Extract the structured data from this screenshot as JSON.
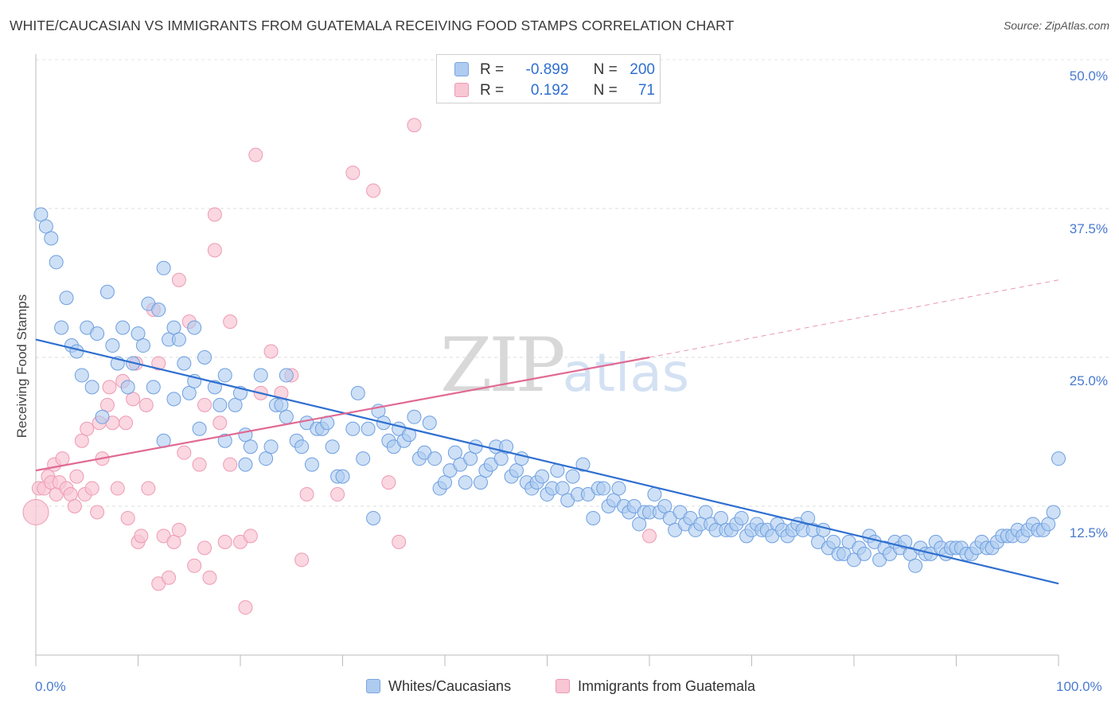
{
  "header": {
    "title": "WHITE/CAUCASIAN VS IMMIGRANTS FROM GUATEMALA RECEIVING FOOD STAMPS CORRELATION CHART",
    "source": "Source: ZipAtlas.com"
  },
  "watermark": {
    "zip": "ZIP",
    "atlas": "atlas"
  },
  "legend_top": {
    "row1": {
      "r_label": "R =",
      "r_value": "-0.899",
      "n_label": "N =",
      "n_value": "200"
    },
    "row2": {
      "r_label": "R =",
      "r_value": "0.192",
      "n_label": "N =",
      "n_value": "71"
    }
  },
  "colors": {
    "blue_fill": "#aecbf0",
    "blue_stroke": "#6e9fe0",
    "blue_line": "#2f6fd0",
    "pink_fill": "#f8c6d4",
    "pink_stroke": "#ee9ab4",
    "pink_line": "#e06a94",
    "tick_text": "#4a7bd0"
  },
  "chart_data": {
    "type": "scatter",
    "title": "WHITE/CAUCASIAN VS IMMIGRANTS FROM GUATEMALA RECEIVING FOOD STAMPS CORRELATION CHART",
    "xlabel": "",
    "ylabel": "Receiving Food Stamps",
    "xlim": [
      0,
      100
    ],
    "ylim": [
      0,
      50
    ],
    "x_tick_labels": [
      "0.0%",
      "100.0%"
    ],
    "y_ticks": [
      12.5,
      25.0,
      37.5,
      50.0
    ],
    "y_tick_labels": [
      "12.5%",
      "25.0%",
      "37.5%",
      "50.0%"
    ],
    "grid": true,
    "legend_position": "bottom",
    "series": [
      {
        "name": "Whites/Caucasians",
        "color": "#aecbf0",
        "r": -0.899,
        "n": 200,
        "trend": {
          "x": [
            0,
            100
          ],
          "y": [
            26.5,
            6.0
          ]
        },
        "points": [
          [
            0.5,
            37.0
          ],
          [
            1.0,
            36.0
          ],
          [
            1.5,
            35.0
          ],
          [
            2.0,
            33.0
          ],
          [
            2.5,
            27.5
          ],
          [
            3.0,
            30.0
          ],
          [
            3.5,
            26.0
          ],
          [
            4.0,
            25.5
          ],
          [
            4.5,
            23.5
          ],
          [
            5.0,
            27.5
          ],
          [
            5.5,
            22.5
          ],
          [
            6.0,
            27.0
          ],
          [
            6.5,
            20.0
          ],
          [
            7.0,
            30.5
          ],
          [
            7.5,
            26.0
          ],
          [
            8.0,
            24.5
          ],
          [
            8.5,
            27.5
          ],
          [
            9.0,
            22.5
          ],
          [
            9.5,
            24.5
          ],
          [
            10.0,
            27.0
          ],
          [
            10.5,
            26.0
          ],
          [
            11.0,
            29.5
          ],
          [
            11.5,
            22.5
          ],
          [
            12.0,
            29.0
          ],
          [
            12.5,
            18.0
          ],
          [
            12.5,
            32.5
          ],
          [
            13.0,
            26.5
          ],
          [
            13.5,
            27.5
          ],
          [
            13.5,
            21.5
          ],
          [
            14.0,
            26.5
          ],
          [
            14.5,
            24.5
          ],
          [
            15.0,
            22.0
          ],
          [
            15.5,
            27.5
          ],
          [
            15.5,
            23.0
          ],
          [
            16.0,
            19.0
          ],
          [
            16.5,
            25.0
          ],
          [
            17.5,
            22.5
          ],
          [
            18.0,
            21.0
          ],
          [
            18.5,
            18.0
          ],
          [
            18.5,
            23.5
          ],
          [
            19.5,
            21.0
          ],
          [
            20.0,
            22.0
          ],
          [
            20.5,
            18.5
          ],
          [
            20.5,
            16.0
          ],
          [
            21.0,
            17.5
          ],
          [
            22.0,
            23.5
          ],
          [
            22.5,
            16.5
          ],
          [
            23.0,
            17.5
          ],
          [
            23.5,
            21.0
          ],
          [
            24.0,
            21.0
          ],
          [
            24.5,
            23.5
          ],
          [
            24.5,
            20.0
          ],
          [
            25.5,
            18.0
          ],
          [
            26.0,
            17.5
          ],
          [
            26.5,
            19.5
          ],
          [
            27.0,
            16.0
          ],
          [
            27.5,
            19.0
          ],
          [
            28.0,
            19.0
          ],
          [
            28.5,
            19.5
          ],
          [
            29.0,
            17.5
          ],
          [
            29.5,
            15.0
          ],
          [
            30.0,
            15.0
          ],
          [
            31.0,
            19.0
          ],
          [
            31.5,
            22.0
          ],
          [
            32.0,
            16.5
          ],
          [
            32.5,
            19.0
          ],
          [
            33.0,
            11.5
          ],
          [
            33.5,
            20.5
          ],
          [
            34.0,
            19.5
          ],
          [
            34.5,
            18.0
          ],
          [
            35.0,
            17.5
          ],
          [
            35.5,
            19.0
          ],
          [
            36.0,
            18.0
          ],
          [
            36.5,
            18.5
          ],
          [
            37.0,
            20.0
          ],
          [
            37.5,
            16.5
          ],
          [
            38.0,
            17.0
          ],
          [
            38.5,
            19.5
          ],
          [
            39.0,
            16.5
          ],
          [
            39.5,
            14.0
          ],
          [
            40.0,
            14.5
          ],
          [
            40.5,
            15.5
          ],
          [
            41.0,
            17.0
          ],
          [
            41.5,
            16.0
          ],
          [
            42.0,
            14.5
          ],
          [
            42.5,
            16.5
          ],
          [
            43.0,
            17.5
          ],
          [
            43.5,
            14.5
          ],
          [
            44.0,
            15.5
          ],
          [
            44.5,
            16.0
          ],
          [
            45.0,
            17.5
          ],
          [
            45.5,
            16.5
          ],
          [
            46.0,
            17.5
          ],
          [
            46.5,
            15.0
          ],
          [
            47.0,
            15.5
          ],
          [
            47.5,
            16.5
          ],
          [
            48.0,
            14.5
          ],
          [
            48.5,
            14.0
          ],
          [
            49.0,
            14.5
          ],
          [
            49.5,
            15.0
          ],
          [
            50.0,
            13.5
          ],
          [
            50.5,
            14.0
          ],
          [
            51.0,
            15.5
          ],
          [
            51.5,
            14.0
          ],
          [
            52.0,
            13.0
          ],
          [
            52.5,
            15.0
          ],
          [
            53.0,
            13.5
          ],
          [
            53.5,
            16.0
          ],
          [
            54.0,
            13.5
          ],
          [
            54.5,
            11.5
          ],
          [
            55.0,
            14.0
          ],
          [
            55.5,
            14.0
          ],
          [
            56.0,
            12.5
          ],
          [
            56.5,
            13.0
          ],
          [
            57.0,
            14.0
          ],
          [
            57.5,
            12.5
          ],
          [
            58.0,
            12.0
          ],
          [
            58.5,
            12.5
          ],
          [
            59.0,
            11.0
          ],
          [
            59.5,
            12.0
          ],
          [
            60.0,
            12.0
          ],
          [
            60.5,
            13.5
          ],
          [
            61.0,
            12.0
          ],
          [
            61.5,
            12.5
          ],
          [
            62.0,
            11.5
          ],
          [
            62.5,
            10.5
          ],
          [
            63.0,
            12.0
          ],
          [
            63.5,
            11.0
          ],
          [
            64.0,
            11.5
          ],
          [
            64.5,
            10.5
          ],
          [
            65.0,
            11.0
          ],
          [
            65.5,
            12.0
          ],
          [
            66.0,
            11.0
          ],
          [
            66.5,
            10.5
          ],
          [
            67.0,
            11.5
          ],
          [
            67.5,
            10.5
          ],
          [
            68.0,
            10.5
          ],
          [
            68.5,
            11.0
          ],
          [
            69.0,
            11.5
          ],
          [
            69.5,
            10.0
          ],
          [
            70.0,
            10.5
          ],
          [
            70.5,
            11.0
          ],
          [
            71.0,
            10.5
          ],
          [
            71.5,
            10.5
          ],
          [
            72.0,
            10.0
          ],
          [
            72.5,
            11.0
          ],
          [
            73.0,
            10.5
          ],
          [
            73.5,
            10.0
          ],
          [
            74.0,
            10.5
          ],
          [
            74.5,
            11.0
          ],
          [
            75.0,
            10.5
          ],
          [
            75.5,
            11.5
          ],
          [
            76.0,
            10.5
          ],
          [
            76.5,
            9.5
          ],
          [
            77.0,
            10.5
          ],
          [
            77.5,
            9.0
          ],
          [
            78.0,
            9.5
          ],
          [
            78.5,
            8.5
          ],
          [
            79.0,
            8.5
          ],
          [
            79.5,
            9.5
          ],
          [
            80.0,
            8.0
          ],
          [
            80.5,
            9.0
          ],
          [
            81.0,
            8.5
          ],
          [
            81.5,
            10.0
          ],
          [
            82.0,
            9.5
          ],
          [
            82.5,
            8.0
          ],
          [
            83.0,
            9.0
          ],
          [
            83.5,
            8.5
          ],
          [
            84.0,
            9.5
          ],
          [
            84.5,
            9.0
          ],
          [
            85.0,
            9.5
          ],
          [
            85.5,
            8.5
          ],
          [
            86.0,
            7.5
          ],
          [
            86.5,
            9.0
          ],
          [
            87.0,
            8.5
          ],
          [
            87.5,
            8.5
          ],
          [
            88.0,
            9.5
          ],
          [
            88.5,
            9.0
          ],
          [
            89.0,
            8.5
          ],
          [
            89.5,
            9.0
          ],
          [
            90.0,
            9.0
          ],
          [
            90.5,
            9.0
          ],
          [
            91.0,
            8.5
          ],
          [
            91.5,
            8.5
          ],
          [
            92.0,
            9.0
          ],
          [
            92.5,
            9.5
          ],
          [
            93.0,
            9.0
          ],
          [
            93.5,
            9.0
          ],
          [
            94.0,
            9.5
          ],
          [
            94.5,
            10.0
          ],
          [
            95.0,
            10.0
          ],
          [
            95.5,
            10.0
          ],
          [
            96.0,
            10.5
          ],
          [
            96.5,
            10.0
          ],
          [
            97.0,
            10.5
          ],
          [
            97.5,
            11.0
          ],
          [
            98.0,
            10.5
          ],
          [
            98.5,
            10.5
          ],
          [
            99.0,
            11.0
          ],
          [
            99.5,
            12.0
          ],
          [
            100.0,
            16.5
          ]
        ]
      },
      {
        "name": "Immigrants from Guatemala",
        "color": "#f8c6d4",
        "r": 0.192,
        "n": 71,
        "trend": {
          "x": [
            0,
            60
          ],
          "y": [
            15.5,
            25.0
          ]
        },
        "trend_extension": {
          "x": [
            60,
            100
          ],
          "y": [
            25.0,
            31.5
          ]
        },
        "points": [
          [
            0.0,
            12.0
          ],
          [
            0.3,
            14.0
          ],
          [
            0.8,
            14.0
          ],
          [
            1.2,
            15.0
          ],
          [
            1.5,
            14.5
          ],
          [
            1.8,
            16.0
          ],
          [
            2.0,
            13.5
          ],
          [
            2.3,
            14.5
          ],
          [
            2.6,
            16.5
          ],
          [
            3.0,
            14.0
          ],
          [
            3.4,
            13.5
          ],
          [
            3.8,
            12.5
          ],
          [
            4.0,
            15.0
          ],
          [
            4.5,
            18.0
          ],
          [
            4.8,
            13.5
          ],
          [
            5.0,
            19.0
          ],
          [
            5.5,
            14.0
          ],
          [
            6.0,
            12.0
          ],
          [
            6.2,
            19.5
          ],
          [
            6.5,
            16.5
          ],
          [
            7.0,
            21.0
          ],
          [
            7.2,
            22.5
          ],
          [
            7.5,
            19.5
          ],
          [
            8.0,
            14.0
          ],
          [
            8.5,
            23.0
          ],
          [
            8.8,
            19.5
          ],
          [
            9.0,
            11.5
          ],
          [
            9.5,
            21.5
          ],
          [
            9.8,
            24.5
          ],
          [
            10.0,
            9.5
          ],
          [
            10.3,
            10.0
          ],
          [
            10.8,
            21.0
          ],
          [
            11.0,
            14.0
          ],
          [
            11.5,
            29.0
          ],
          [
            12.0,
            24.5
          ],
          [
            12.0,
            6.0
          ],
          [
            12.5,
            10.0
          ],
          [
            13.0,
            6.5
          ],
          [
            13.5,
            9.5
          ],
          [
            14.0,
            10.5
          ],
          [
            14.0,
            31.5
          ],
          [
            14.5,
            17.0
          ],
          [
            15.0,
            28.0
          ],
          [
            15.5,
            7.5
          ],
          [
            16.0,
            16.0
          ],
          [
            16.5,
            9.0
          ],
          [
            16.5,
            21.0
          ],
          [
            17.0,
            6.5
          ],
          [
            17.5,
            37.0
          ],
          [
            17.5,
            34.0
          ],
          [
            18.0,
            19.5
          ],
          [
            18.5,
            9.5
          ],
          [
            19.0,
            16.0
          ],
          [
            19.0,
            28.0
          ],
          [
            20.0,
            9.5
          ],
          [
            20.5,
            4.0
          ],
          [
            21.0,
            10.0
          ],
          [
            21.5,
            42.0
          ],
          [
            22.0,
            22.0
          ],
          [
            23.0,
            25.5
          ],
          [
            24.0,
            22.0
          ],
          [
            25.0,
            23.5
          ],
          [
            26.0,
            8.0
          ],
          [
            26.5,
            13.5
          ],
          [
            29.5,
            13.5
          ],
          [
            31.0,
            40.5
          ],
          [
            33.0,
            39.0
          ],
          [
            34.5,
            14.5
          ],
          [
            35.5,
            9.5
          ],
          [
            37.0,
            44.5
          ],
          [
            60.0,
            10.0
          ]
        ]
      }
    ]
  },
  "axes": {
    "ylabel": "Receiving Food Stamps",
    "x_left": "0.0%",
    "x_right": "100.0%",
    "y_ticks": [
      "12.5%",
      "25.0%",
      "37.5%",
      "50.0%"
    ]
  },
  "legend_bottom": {
    "series1": "Whites/Caucasians",
    "series2": "Immigrants from Guatemala"
  }
}
